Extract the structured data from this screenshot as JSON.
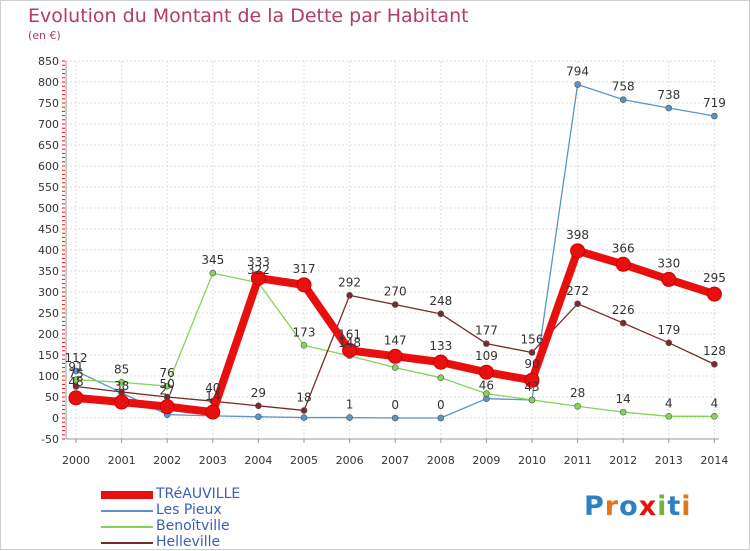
{
  "header": {
    "title": "Evolution du Montant de la Dette par Habitant",
    "unit": "(en €)"
  },
  "branding": {
    "logo_text": "Proxiti"
  },
  "chart_data": {
    "type": "line",
    "title": "Evolution du Montant de la Dette par Habitant",
    "subtitle": "(en €)",
    "x": [
      "2000",
      "2001",
      "2002",
      "2003",
      "2004",
      "2005",
      "2006",
      "2007",
      "2008",
      "2009",
      "2010",
      "2011",
      "2012",
      "2013",
      "2014"
    ],
    "ylim": [
      -50,
      850
    ],
    "yticks": [
      -50,
      0,
      50,
      100,
      150,
      200,
      250,
      300,
      350,
      400,
      450,
      500,
      550,
      600,
      650,
      700,
      750,
      800,
      850
    ],
    "grid": true,
    "legend_position": "bottom-left",
    "series": [
      {
        "name": "TRéAUVILLE",
        "color": "#e8100f",
        "width": 8,
        "marker": 7,
        "values": [
          48,
          38,
          27,
          14,
          333,
          317,
          161,
          147,
          133,
          109,
          90,
          398,
          366,
          330,
          295
        ],
        "labels": [
          "48",
          "38",
          "27",
          "14",
          "333",
          "317",
          "161",
          "147",
          "133",
          "109",
          "90",
          "398",
          "366",
          "330",
          "295"
        ]
      },
      {
        "name": "Les Pieux",
        "color": "#5a95c8",
        "width": 1.3,
        "marker": 3,
        "values": [
          112,
          60,
          8,
          5,
          3,
          1,
          1,
          0,
          0,
          46,
          43,
          794,
          758,
          738,
          719
        ],
        "labels": [
          "112",
          "",
          "",
          "",
          "",
          "",
          "1",
          "0",
          "0",
          "46",
          "43",
          "794",
          "758",
          "738",
          "719"
        ]
      },
      {
        "name": "Benoîtville",
        "color": "#86d35a",
        "width": 1.3,
        "marker": 3,
        "values": [
          91,
          85,
          76,
          345,
          322,
          173,
          148,
          120,
          96,
          58,
          43,
          28,
          14,
          4,
          4
        ],
        "labels": [
          "91",
          "85",
          "76",
          "345",
          "322",
          "173",
          "148",
          "",
          "",
          "",
          "",
          "28",
          "14",
          "4",
          "4"
        ]
      },
      {
        "name": "Helleville",
        "color": "#7a2a2a",
        "width": 1.3,
        "marker": 3,
        "values": [
          75,
          62,
          50,
          40,
          29,
          18,
          292,
          270,
          248,
          177,
          156,
          272,
          226,
          179,
          128
        ],
        "labels": [
          "75",
          "",
          "50",
          "40",
          "29",
          "18",
          "292",
          "270",
          "248",
          "177",
          "156",
          "272",
          "226",
          "179",
          "128"
        ]
      }
    ]
  }
}
